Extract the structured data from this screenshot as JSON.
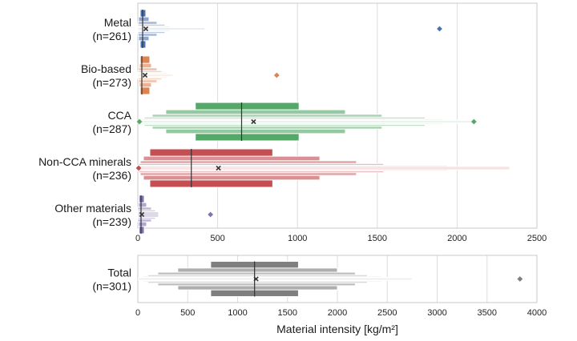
{
  "chart_data": [
    {
      "type": "boxen",
      "xlim": [
        0,
        2500
      ],
      "x_ticks": [
        0,
        500,
        1000,
        1500,
        2000,
        2500
      ],
      "grid": true,
      "categories": [
        {
          "name": "Metal",
          "n_label": "(n=261)",
          "color": "#4c72b0",
          "median": 30,
          "mean": 50,
          "levels": [
            [
              15,
              50
            ],
            [
              5,
              70
            ],
            [
              2,
              120
            ],
            [
              0,
              170
            ],
            [
              0,
              200
            ],
            [
              0,
              260
            ],
            [
              0,
              420
            ]
          ],
          "outliers": [
            1890
          ]
        },
        {
          "name": "Bio-based",
          "n_label": "(n=273)",
          "color": "#dd8452",
          "median": 25,
          "mean": 45,
          "levels": [
            [
              15,
              75
            ],
            [
              10,
              85
            ],
            [
              5,
              120
            ],
            [
              2,
              150
            ],
            [
              0,
              180
            ],
            [
              0,
              200
            ],
            [
              0,
              220
            ]
          ],
          "outliers": [
            870
          ]
        },
        {
          "name": "CCA",
          "n_label": "(n=287)",
          "color": "#55a868",
          "median": 650,
          "mean": 725,
          "levels": [
            [
              360,
              1010
            ],
            [
              175,
              1300
            ],
            [
              90,
              1530
            ],
            [
              40,
              1800
            ],
            [
              20,
              1910
            ],
            [
              5,
              2060
            ],
            [
              0,
              2090
            ]
          ],
          "outliers": [
            10,
            2105
          ]
        },
        {
          "name": "Non-CCA minerals",
          "n_label": "(n=236)",
          "color": "#c44e52",
          "median": 335,
          "mean": 505,
          "levels": [
            [
              75,
              845
            ],
            [
              35,
              1140
            ],
            [
              15,
              1370
            ],
            [
              5,
              1540
            ],
            [
              0,
              1940
            ],
            [
              0,
              2330
            ]
          ],
          "outliers": [
            5
          ]
        },
        {
          "name": "Other materials",
          "n_label": "(n=239)",
          "color": "#8172b3",
          "median": 20,
          "mean": 25,
          "levels": [
            [
              8,
              40
            ],
            [
              4,
              55
            ],
            [
              0,
              85
            ],
            [
              0,
              110
            ],
            [
              0,
              130
            ]
          ],
          "outliers": [
            455
          ]
        }
      ]
    },
    {
      "type": "boxen",
      "xlim": [
        0,
        4000
      ],
      "x_ticks": [
        0,
        500,
        1000,
        1500,
        2000,
        2500,
        3000,
        3500,
        4000
      ],
      "grid": true,
      "xlabel": "Material intensity [kg/m²]",
      "categories": [
        {
          "name": "Total",
          "n_label": "(n=301)",
          "color": "#7f7f7f",
          "median": 1170,
          "mean": 1185,
          "levels": [
            [
              730,
              1610
            ],
            [
              400,
              2000
            ],
            [
              200,
              2180
            ],
            [
              100,
              2300
            ],
            [
              50,
              2440
            ],
            [
              20,
              2580
            ],
            [
              5,
              2750
            ]
          ],
          "outliers": [
            3830
          ]
        }
      ]
    }
  ]
}
